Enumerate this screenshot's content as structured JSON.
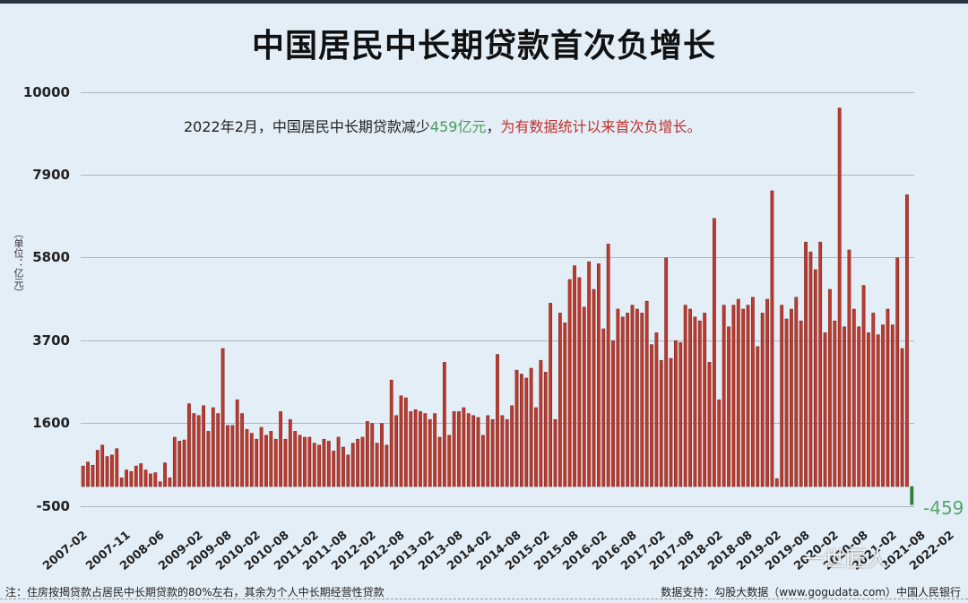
{
  "title": "中国居民中长期贷款首次负增长",
  "annotation": {
    "prefix": "2022年2月，中国居民中长期贷款减少",
    "highlight": "459亿元",
    "separator": "，",
    "suffix": "为有数据统计以来首次负增长。"
  },
  "y_axis_unit": "（单位：亿元）",
  "y_ticks": [
    "10000",
    "7900",
    "5800",
    "3700",
    "1600",
    "-500"
  ],
  "x_ticks": [
    "2007-02",
    "2007-11",
    "2008-06",
    "2009-02",
    "2009-08",
    "2010-02",
    "2010-08",
    "2011-02",
    "2011-08",
    "2012-02",
    "2012-08",
    "2013-02",
    "2013-08",
    "2014-02",
    "2014-08",
    "2015-02",
    "2015-08",
    "2016-02",
    "2016-08",
    "2017-02",
    "2017-08",
    "2018-02",
    "2018-08",
    "2019-02",
    "2019-08",
    "2020-02",
    "2020-08",
    "2021-02",
    "2021-08",
    "2022-02"
  ],
  "last_value_label": "-459",
  "footnote": "注：住房按揭贷款占居民中长期贷款的80%左右，其余为个人中长期经营性贷款",
  "source": "数据支持：勾股大数据（www.gogudata.com）中国人民银行",
  "watermark": "一世匠人",
  "colors": {
    "bar": "#c0392b",
    "bar_edge": "#7a2a26",
    "negative": "#2e7d32",
    "highlight_green": "#4a9a5a",
    "highlight_red": "#c0302a"
  },
  "chart_data": {
    "type": "bar",
    "title": "中国居民中长期贷款首次负增长",
    "xlabel": "",
    "ylabel": "单位：亿元",
    "ylim": [
      -500,
      10000
    ],
    "grid": true,
    "x_start": "2007-02",
    "x_end": "2022-02",
    "frequency": "monthly",
    "values": [
      520,
      620,
      540,
      920,
      1050,
      760,
      800,
      960,
      220,
      420,
      380,
      520,
      580,
      420,
      320,
      350,
      120,
      600,
      220,
      1250,
      1150,
      1180,
      2100,
      1850,
      1800,
      2050,
      1400,
      2000,
      1850,
      3500,
      1550,
      1550,
      2200,
      1850,
      1450,
      1350,
      1200,
      1500,
      1300,
      1400,
      1200,
      1900,
      1200,
      1700,
      1400,
      1300,
      1250,
      1250,
      1100,
      1050,
      1200,
      1150,
      900,
      1250,
      1000,
      800,
      1100,
      1200,
      1250,
      1650,
      1600,
      1100,
      1600,
      1050,
      2700,
      1800,
      2300,
      2250,
      1900,
      1950,
      1900,
      1850,
      1700,
      1850,
      1250,
      3150,
      1300,
      1900,
      1900,
      2000,
      1850,
      1800,
      1750,
      1300,
      1800,
      1700,
      3350,
      1800,
      1700,
      2050,
      2950,
      2850,
      2750,
      3000,
      2000,
      3200,
      2900,
      4650,
      1700,
      4400,
      4150,
      5250,
      5600,
      5300,
      4550,
      5700,
      5000,
      5650,
      4000,
      6150,
      3700,
      4500,
      4300,
      4400,
      4600,
      4500,
      4400,
      4700,
      3600,
      3900,
      3200,
      5800,
      3250,
      3700,
      3650,
      4600,
      4500,
      4300,
      4200,
      4400,
      3150,
      6800,
      2200,
      4600,
      4050,
      4600,
      4750,
      4500,
      4600,
      4800,
      3550,
      4400,
      4750,
      7500,
      200,
      4600,
      4250,
      4500,
      4800,
      4200,
      6200,
      5950,
      5500,
      6200,
      3900,
      5000,
      4200,
      9600,
      4050,
      6000,
      4500,
      4050,
      5100,
      3900,
      4400,
      3850,
      4100,
      4500,
      4100,
      5800,
      3500,
      7400,
      -459
    ]
  }
}
